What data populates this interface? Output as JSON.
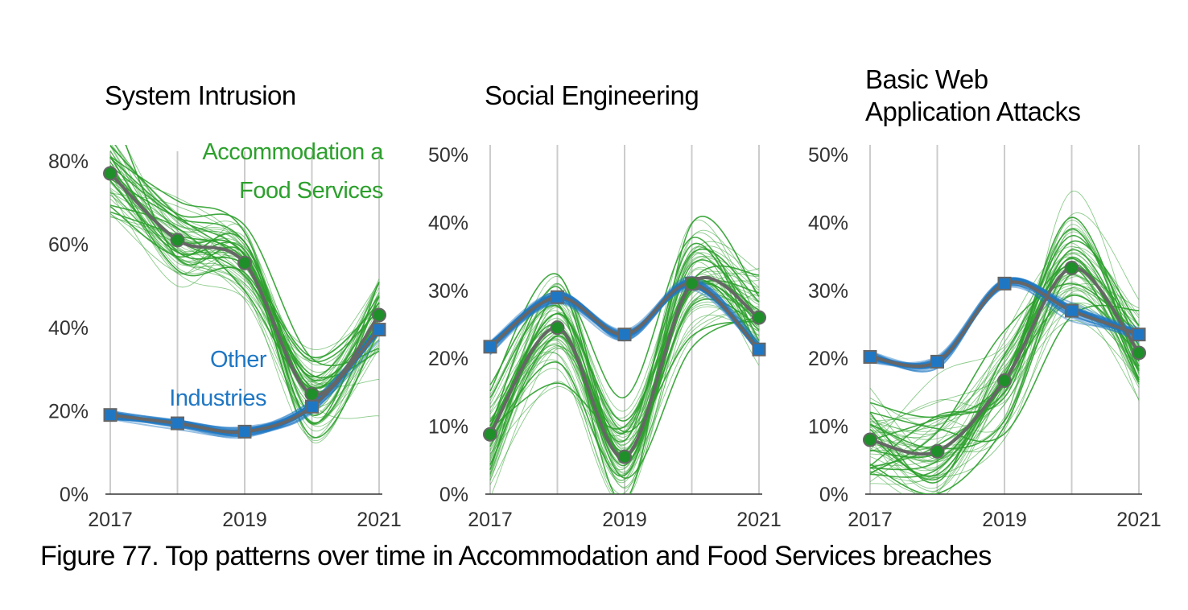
{
  "caption": "Figure 77. Top patterns over time in Accommodation and Food Services breaches",
  "colors": {
    "industry": "#2ca02c",
    "industry_marker": "#1f8f2a",
    "other": "#1f77c4",
    "median_line": "#666666",
    "gridline": "#cccccc",
    "axis": "#333333"
  },
  "chart_data": [
    {
      "type": "line",
      "title": [
        "System Intrusion"
      ],
      "x": [
        2017,
        2018,
        2019,
        2020,
        2021
      ],
      "xtick_labels": [
        "2017",
        "2019",
        "2021"
      ],
      "ylim": [
        0,
        0.8
      ],
      "yticks": [
        0,
        0.2,
        0.4,
        0.6,
        0.8
      ],
      "ytick_labels": [
        "0%",
        "20%",
        "40%",
        "60%",
        "80%"
      ],
      "grid": "vertical",
      "series": [
        {
          "name": "Accommodation and Food Services",
          "values": [
            0.77,
            0.61,
            0.555,
            0.24,
            0.43
          ]
        },
        {
          "name": "Other Industries",
          "values": [
            0.19,
            0.17,
            0.15,
            0.21,
            0.395
          ]
        }
      ],
      "annotations": [
        {
          "series": "Accommodation and Food Services",
          "lines": [
            "Accommodation a",
            "Food Services"
          ]
        },
        {
          "series": "Other Industries",
          "lines": [
            "Other",
            "Industries"
          ]
        }
      ]
    },
    {
      "type": "line",
      "title": [
        "Social Engineering"
      ],
      "x": [
        2017,
        2018,
        2019,
        2020,
        2021
      ],
      "xtick_labels": [
        "2017",
        "2019",
        "2021"
      ],
      "ylim": [
        0,
        0.5
      ],
      "yticks": [
        0,
        0.1,
        0.2,
        0.3,
        0.4,
        0.5
      ],
      "ytick_labels": [
        "0%",
        "10%",
        "20%",
        "30%",
        "40%",
        "50%"
      ],
      "grid": "vertical",
      "series": [
        {
          "name": "Accommodation and Food Services",
          "values": [
            0.088,
            0.245,
            0.055,
            0.31,
            0.26
          ]
        },
        {
          "name": "Other Industries",
          "values": [
            0.217,
            0.29,
            0.235,
            0.31,
            0.213
          ]
        }
      ]
    },
    {
      "type": "line",
      "title": [
        "Basic Web",
        "Application Attacks"
      ],
      "x": [
        2017,
        2018,
        2019,
        2020,
        2021
      ],
      "xtick_labels": [
        "2017",
        "2019",
        "2021"
      ],
      "ylim": [
        0,
        0.5
      ],
      "yticks": [
        0,
        0.1,
        0.2,
        0.3,
        0.4,
        0.5
      ],
      "ytick_labels": [
        "0%",
        "10%",
        "20%",
        "30%",
        "40%",
        "50%"
      ],
      "grid": "vertical",
      "series": [
        {
          "name": "Accommodation and Food Services",
          "values": [
            0.08,
            0.063,
            0.167,
            0.333,
            0.208
          ]
        },
        {
          "name": "Other Industries",
          "values": [
            0.202,
            0.195,
            0.31,
            0.27,
            0.235
          ]
        }
      ]
    }
  ]
}
